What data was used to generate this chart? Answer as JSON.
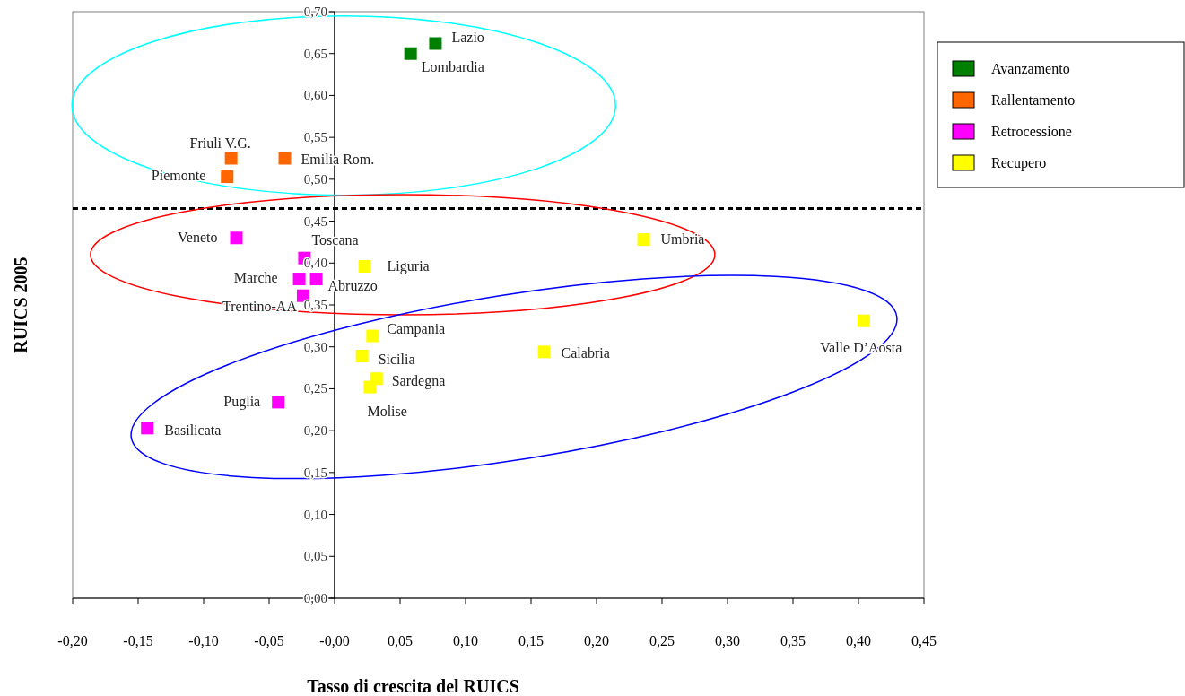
{
  "chart_data": {
    "type": "scatter",
    "xlabel": "Tasso di crescita del RUICS",
    "ylabel": "RUICS 2005",
    "series": [
      {
        "name": "Avanzamento",
        "color": "#008000",
        "x": [
          0.077,
          0.058
        ],
        "values": [
          0.662,
          0.65
        ]
      },
      {
        "name": "Rallentamento",
        "color": "#ff6600",
        "x": [
          -0.079,
          -0.038,
          -0.082
        ],
        "values": [
          0.525,
          0.525,
          0.503
        ]
      },
      {
        "name": "Retrocessione",
        "color": "#ff00ff",
        "x": [
          -0.075,
          -0.023,
          -0.027,
          -0.014,
          -0.024,
          -0.043,
          -0.143
        ],
        "values": [
          0.43,
          0.406,
          0.381,
          0.381,
          0.361,
          0.234,
          0.203
        ]
      },
      {
        "name": "Recupero",
        "color": "#ffff00",
        "x": [
          0.023,
          0.236,
          0.029,
          0.021,
          0.032,
          0.027,
          0.16,
          0.404
        ],
        "values": [
          0.396,
          0.428,
          0.313,
          0.289,
          0.262,
          0.252,
          0.294,
          0.331
        ]
      }
    ],
    "annotations": [
      {
        "text": "Lazio",
        "x": 0.077,
        "y": 0.662
      },
      {
        "text": "Lombardia",
        "x": 0.058,
        "y": 0.65
      },
      {
        "text": "Friuli V.G.",
        "x": -0.079,
        "y": 0.525
      },
      {
        "text": "Emilia Rom.",
        "x": -0.038,
        "y": 0.525
      },
      {
        "text": "Piemonte",
        "x": -0.082,
        "y": 0.503
      },
      {
        "text": "Veneto",
        "x": -0.075,
        "y": 0.43
      },
      {
        "text": "Toscana",
        "x": -0.023,
        "y": 0.406
      },
      {
        "text": "Marche",
        "x": -0.027,
        "y": 0.381
      },
      {
        "text": "Abruzzo",
        "x": -0.014,
        "y": 0.381
      },
      {
        "text": "Trentino-AA",
        "x": -0.024,
        "y": 0.361
      },
      {
        "text": "Puglia",
        "x": -0.043,
        "y": 0.234
      },
      {
        "text": "Basilicata",
        "x": -0.143,
        "y": 0.203
      },
      {
        "text": "Liguria",
        "x": 0.023,
        "y": 0.396
      },
      {
        "text": "Umbria",
        "x": 0.236,
        "y": 0.428
      },
      {
        "text": "Campania",
        "x": 0.029,
        "y": 0.313
      },
      {
        "text": "Sicilia",
        "x": 0.021,
        "y": 0.289
      },
      {
        "text": "Sardegna",
        "x": 0.032,
        "y": 0.262
      },
      {
        "text": "Molise",
        "x": 0.027,
        "y": 0.252
      },
      {
        "text": "Calabria",
        "x": 0.16,
        "y": 0.294
      },
      {
        "text": "Valle D’Aosta",
        "x": 0.404,
        "y": 0.331
      }
    ],
    "ref_lines": [
      {
        "axis": "y",
        "value": 0.465,
        "line_style": "dashed",
        "color": "#000000"
      }
    ],
    "xlim": [
      -0.2,
      0.45
    ],
    "xticks": [
      {
        "value": -0.2,
        "label": "-0,20"
      },
      {
        "value": -0.15,
        "label": "-0,15"
      },
      {
        "value": -0.1,
        "label": "-0,10"
      },
      {
        "value": -0.05,
        "label": "-0,05"
      },
      {
        "value": 0,
        "label": "-0,00"
      },
      {
        "value": 0.05,
        "label": "0,05"
      },
      {
        "value": 0.1,
        "label": "0,10"
      },
      {
        "value": 0.15,
        "label": "0,15"
      },
      {
        "value": 0.2,
        "label": "0,20"
      },
      {
        "value": 0.25,
        "label": "0,25"
      },
      {
        "value": 0.3,
        "label": "0,30"
      },
      {
        "value": 0.35,
        "label": "0,35"
      },
      {
        "value": 0.4,
        "label": "0,40"
      },
      {
        "value": 0.45,
        "label": "0,45"
      }
    ],
    "ylim": [
      0,
      0.7
    ],
    "yticks": [
      {
        "value": 0,
        "label": "0,00"
      },
      {
        "value": 0.05,
        "label": "0,05"
      },
      {
        "value": 0.1,
        "label": "0,10"
      },
      {
        "value": 0.15,
        "label": "0,15"
      },
      {
        "value": 0.2,
        "label": "0,20"
      },
      {
        "value": 0.25,
        "label": "0,25"
      },
      {
        "value": 0.3,
        "label": "0,30"
      },
      {
        "value": 0.35,
        "label": "0,35"
      },
      {
        "value": 0.4,
        "label": "0,40"
      },
      {
        "value": 0.45,
        "label": "0,45"
      },
      {
        "value": 0.5,
        "label": "0,50"
      },
      {
        "value": 0.55,
        "label": "0,55"
      },
      {
        "value": 0.6,
        "label": "0,60"
      },
      {
        "value": 0.65,
        "label": "0,65"
      },
      {
        "value": 0.7,
        "label": "0,70"
      }
    ],
    "grid": false,
    "legend": "right",
    "marker": "square"
  }
}
